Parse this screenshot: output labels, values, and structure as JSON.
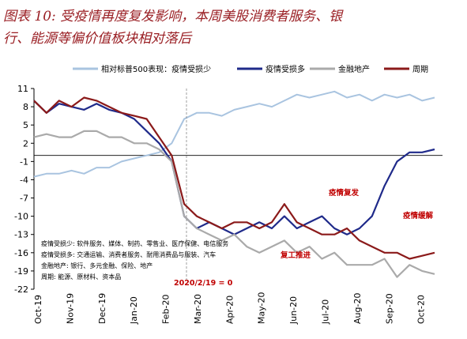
{
  "title": {
    "line1": "图表 10: 受疫情再度复发影响，本周美股消费者服务、银",
    "line2": "行、能源等偏价值板块相对落后"
  },
  "colors": {
    "relative_loss_less": "#a9c4e0",
    "relative_loss_more": "#1f2a8a",
    "finance_realestate": "#aaaaaa",
    "cyclical": "#8b1a1a",
    "annotation": "#c00000",
    "title": "#9a1f24"
  },
  "notes": [
    "疫情受损少: 软件服务、媒体、制药、零售业、医疗保健、电信服务",
    "疫情受损多: 交通运输、消费者服务、耐用消费品与服装、汽车",
    "金融地产: 银行、多元金融、保险、地产",
    "周期: 能源、原材料、资本品"
  ],
  "annotations": {
    "resurgence": "疫情复发",
    "easing": "疫情缓解",
    "reopening": "复工推进",
    "baseline": "2020/2/19 = 0"
  },
  "chart_data": {
    "type": "line",
    "xlabel": "",
    "ylabel": "",
    "ylim": [
      -22,
      11
    ],
    "yticks": [
      11,
      8,
      5,
      2,
      -1,
      -4,
      -7,
      -10,
      -13,
      -16,
      -19,
      -22
    ],
    "xticks": [
      "Oct-19",
      "Nov-19",
      "Dec-19",
      "Jan-20",
      "Feb-20",
      "Mar-20",
      "Apr-20",
      "May-20",
      "Jun-20",
      "Jul-20",
      "Aug-20",
      "Sep-20",
      "Oct-20"
    ],
    "legend_position": "top",
    "grid": false,
    "series": [
      {
        "name": "相对标普500表现：疫情受损少",
        "color": "#a9c4e0",
        "values": [
          -3.5,
          -3,
          -3,
          -2.5,
          -3,
          -2,
          -2,
          -1,
          -0.5,
          0,
          0.5,
          2,
          6,
          7,
          7,
          6.5,
          7.5,
          8,
          8.5,
          8,
          9,
          10,
          9.5,
          10,
          10.5,
          9.5,
          10,
          9,
          10,
          9.5,
          10,
          9,
          9.5
        ]
      },
      {
        "name": "疫情受损多",
        "color": "#1f2a8a",
        "values": [
          9,
          7,
          8.5,
          8,
          7.5,
          8.5,
          7.5,
          7,
          6,
          4,
          2,
          -1,
          -10,
          -12,
          -11,
          -12,
          -13,
          -12,
          -11,
          -12,
          -10,
          -12,
          -11,
          -10,
          -12,
          -13,
          -12,
          -10,
          -5,
          -1,
          0.5,
          0.5,
          1
        ]
      },
      {
        "name": "金融地产",
        "color": "#aaaaaa",
        "values": [
          3,
          3.5,
          3,
          3,
          4,
          4,
          3,
          3,
          2,
          2,
          1,
          -1,
          -10,
          -12,
          -13,
          -14,
          -13,
          -15,
          -16,
          -15,
          -14,
          -16,
          -15,
          -17,
          -16,
          -18,
          -18,
          -18,
          -17,
          -20,
          -18,
          -19,
          -19.5
        ]
      },
      {
        "name": "周期",
        "color": "#8b1a1a",
        "values": [
          9,
          7,
          9,
          8,
          9.5,
          9,
          8,
          7,
          6.5,
          6,
          3,
          0,
          -8,
          -10,
          -11,
          -12,
          -11,
          -11,
          -12,
          -11,
          -8,
          -11,
          -12,
          -13,
          -13,
          -12,
          -14,
          -15,
          -16,
          -16,
          -17,
          -16.5,
          -16
        ]
      }
    ]
  }
}
